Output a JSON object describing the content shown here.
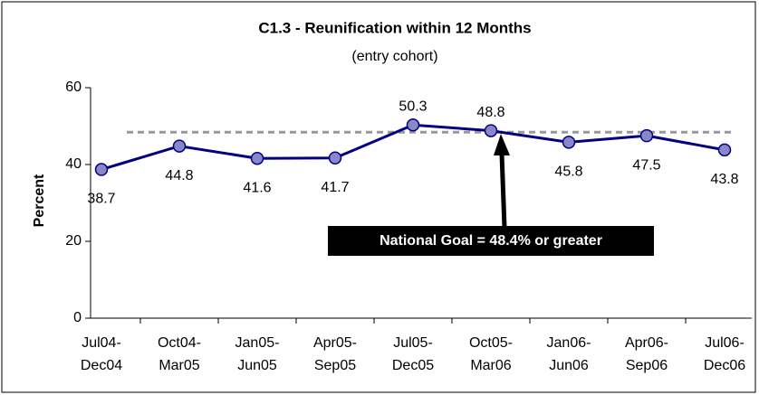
{
  "chart_data": {
    "type": "line",
    "title": "C1.3 - Reunification within 12 Months",
    "subtitle": "(entry cohort)",
    "y_label": "Percent",
    "categories": [
      [
        "Jul04-",
        "Dec04"
      ],
      [
        "Oct04-",
        "Mar05"
      ],
      [
        "Jan05-",
        "Jun05"
      ],
      [
        "Apr05-",
        "Sep05"
      ],
      [
        "Jul05-",
        "Dec05"
      ],
      [
        "Oct05-",
        "Mar06"
      ],
      [
        "Jan06-",
        "Jun06"
      ],
      [
        "Apr06-",
        "Sep06"
      ],
      [
        "Jul06-",
        "Dec06"
      ]
    ],
    "series": [
      {
        "color": "#000080",
        "marker_color": "#8888c8",
        "values": [
          38.7,
          44.8,
          41.6,
          41.7,
          50.3,
          48.8,
          45.8,
          47.5,
          43.8
        ]
      }
    ],
    "ylim": [
      0,
      60
    ],
    "yticks": [
      0,
      20,
      40,
      60
    ],
    "goal": {
      "value": 48.4,
      "label": "National Goal = 48.4% or greater",
      "color": "#999999"
    }
  }
}
